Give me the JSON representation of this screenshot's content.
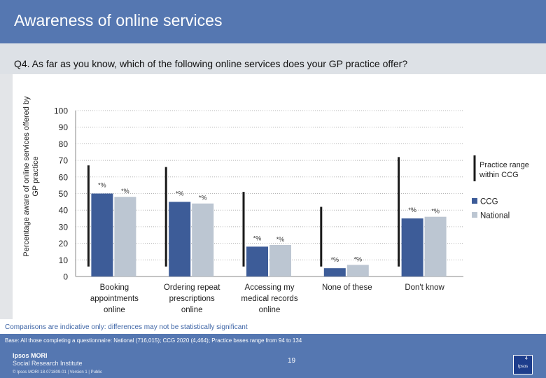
{
  "header": {
    "title": "Awareness of online services"
  },
  "question": "Q4. As far as you know, which of the following online services does your GP practice offer?",
  "colors": {
    "ccg": "#3d5c98",
    "national": "#bcc6d2",
    "range": "#1a1a1a",
    "header": "#5577b1"
  },
  "chart_data": {
    "type": "bar",
    "ylabel": "Percentage aware of online services offered by GP practice",
    "ylim": [
      0,
      100
    ],
    "yticks": [
      0,
      10,
      20,
      30,
      40,
      50,
      60,
      70,
      80,
      90,
      100
    ],
    "grid": true,
    "legend_position": "right",
    "categories": [
      "Booking appointments online",
      "Ordering repeat prescriptions online",
      "Accessing my medical records online",
      "None of these",
      "Don't know"
    ],
    "category_lines": [
      [
        "Booking",
        "appointments",
        "online"
      ],
      [
        "Ordering repeat",
        "prescriptions",
        "online"
      ],
      [
        "Accessing my",
        "medical records",
        "online"
      ],
      [
        "None of these"
      ],
      [
        "Don't know"
      ]
    ],
    "series": [
      {
        "name": "CCG",
        "values": [
          50,
          45,
          18,
          5,
          35
        ],
        "labels": [
          "*%",
          "*%",
          "*%",
          "*%",
          "*%"
        ]
      },
      {
        "name": "National",
        "values": [
          48,
          44,
          19,
          7,
          36
        ],
        "labels": [
          "*%",
          "*%",
          "*%",
          "*%",
          "*%"
        ]
      }
    ],
    "range_series": {
      "name": "Practice range within CCG",
      "min": [
        6,
        6,
        6,
        6,
        6
      ],
      "max": [
        67,
        66,
        51,
        42,
        72
      ]
    }
  },
  "footer": {
    "comparisons": "Comparisons are indicative only: differences may not be statistically significant",
    "base": "Base: All those completing a questionnaire: National (716,015); CCG 2020 (4,464); Practice bases range from 94 to 134",
    "page_number": "19",
    "logo_line1": "Ipsos MORI",
    "logo_line2": "Social Research Institute",
    "copyright": "© Ipsos MORI     18-071809-01 | Version 1 | Public",
    "badge_number": "4",
    "badge_text": "Ipsos"
  }
}
